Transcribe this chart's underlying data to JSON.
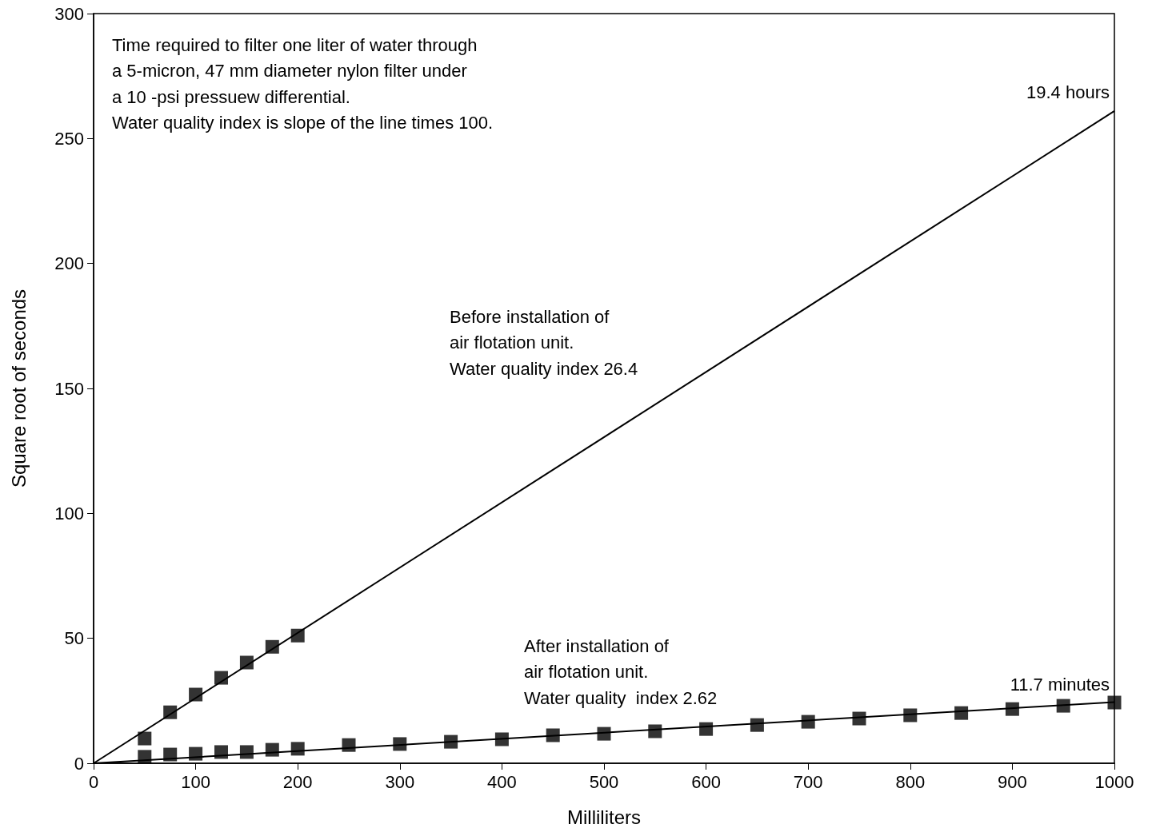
{
  "chart_data": {
    "type": "scatter",
    "xlabel": "Milliliters",
    "ylabel": "Square root of seconds",
    "xlim": [
      0,
      1000
    ],
    "xticks": [
      0,
      100,
      200,
      300,
      400,
      500,
      600,
      700,
      800,
      900,
      1000
    ],
    "ylim": [
      0,
      300
    ],
    "yticks": [
      0,
      50,
      100,
      150,
      200,
      250,
      300
    ],
    "grid": false,
    "marker": "square",
    "series": [
      {
        "color": "#000000",
        "x": [
          50,
          75,
          100,
          125,
          150,
          175,
          200
        ],
        "values": [
          9.9,
          20.4,
          27.5,
          34.2,
          40.3,
          46.6,
          51.1
        ]
      },
      {
        "color": "#000000",
        "x": [
          50,
          75,
          100,
          125,
          150,
          175,
          200,
          250,
          300,
          350,
          400,
          450,
          500,
          550,
          600,
          650,
          700,
          750,
          800,
          850,
          900,
          950,
          1000
        ],
        "values": [
          2.6,
          3.5,
          3.8,
          4.5,
          4.5,
          5.4,
          5.8,
          7.3,
          7.7,
          8.6,
          9.6,
          11.2,
          11.8,
          12.8,
          13.7,
          15.3,
          16.6,
          17.9,
          19.2,
          20.1,
          21.7,
          23,
          24.3
        ]
      },
      {
        "type": "line",
        "marker": "none",
        "color": "#000000",
        "x": [
          0,
          1000
        ],
        "values": [
          0,
          261
        ]
      },
      {
        "type": "line",
        "marker": "none",
        "color": "#000000",
        "x": [
          0,
          1000
        ],
        "values": [
          0,
          24.5
        ]
      }
    ],
    "annotations": [
      "Time required to filter one liter of water through\na 5-micron, 47 mm diameter nylon filter under\na 10 -psi pressuew differential.\nWater quality index is slope of the line times 100.",
      "Before installation of\nair flotation unit.\nWater quality index 26.4",
      "After installation of\nair flotation unit.\nWater quality  index 2.62",
      {
        "text": "19.4 hours",
        "x": 1000,
        "y": 261
      },
      {
        "text": "11.7 minutes",
        "x": 1000,
        "y": 24.3
      }
    ]
  }
}
